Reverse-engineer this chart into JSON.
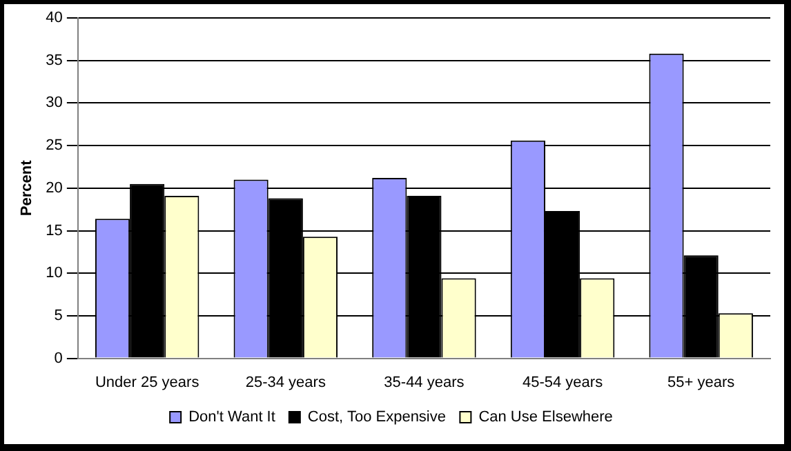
{
  "chart_data": {
    "type": "bar",
    "ylabel": "Percent",
    "categories": [
      "Under 25 years",
      "25-34 years",
      "35-44 years",
      "45-54 years",
      "55+ years"
    ],
    "series": [
      {
        "name": "Don't Want It",
        "color": "#9999ff",
        "values": [
          16.4,
          21.0,
          21.2,
          25.6,
          35.8
        ]
      },
      {
        "name": "Cost, Too Expensive",
        "color": "#000000",
        "values": [
          20.5,
          18.8,
          19.1,
          17.3,
          12.1
        ]
      },
      {
        "name": "Can Use Elsewhere",
        "color": "#ffffcc",
        "values": [
          19.1,
          14.3,
          9.4,
          9.4,
          5.3
        ]
      }
    ],
    "ylim": [
      0,
      40
    ],
    "yticks": [
      0,
      5,
      10,
      15,
      20,
      25,
      30,
      35,
      40
    ],
    "grid": "y",
    "legend": "bottom"
  }
}
